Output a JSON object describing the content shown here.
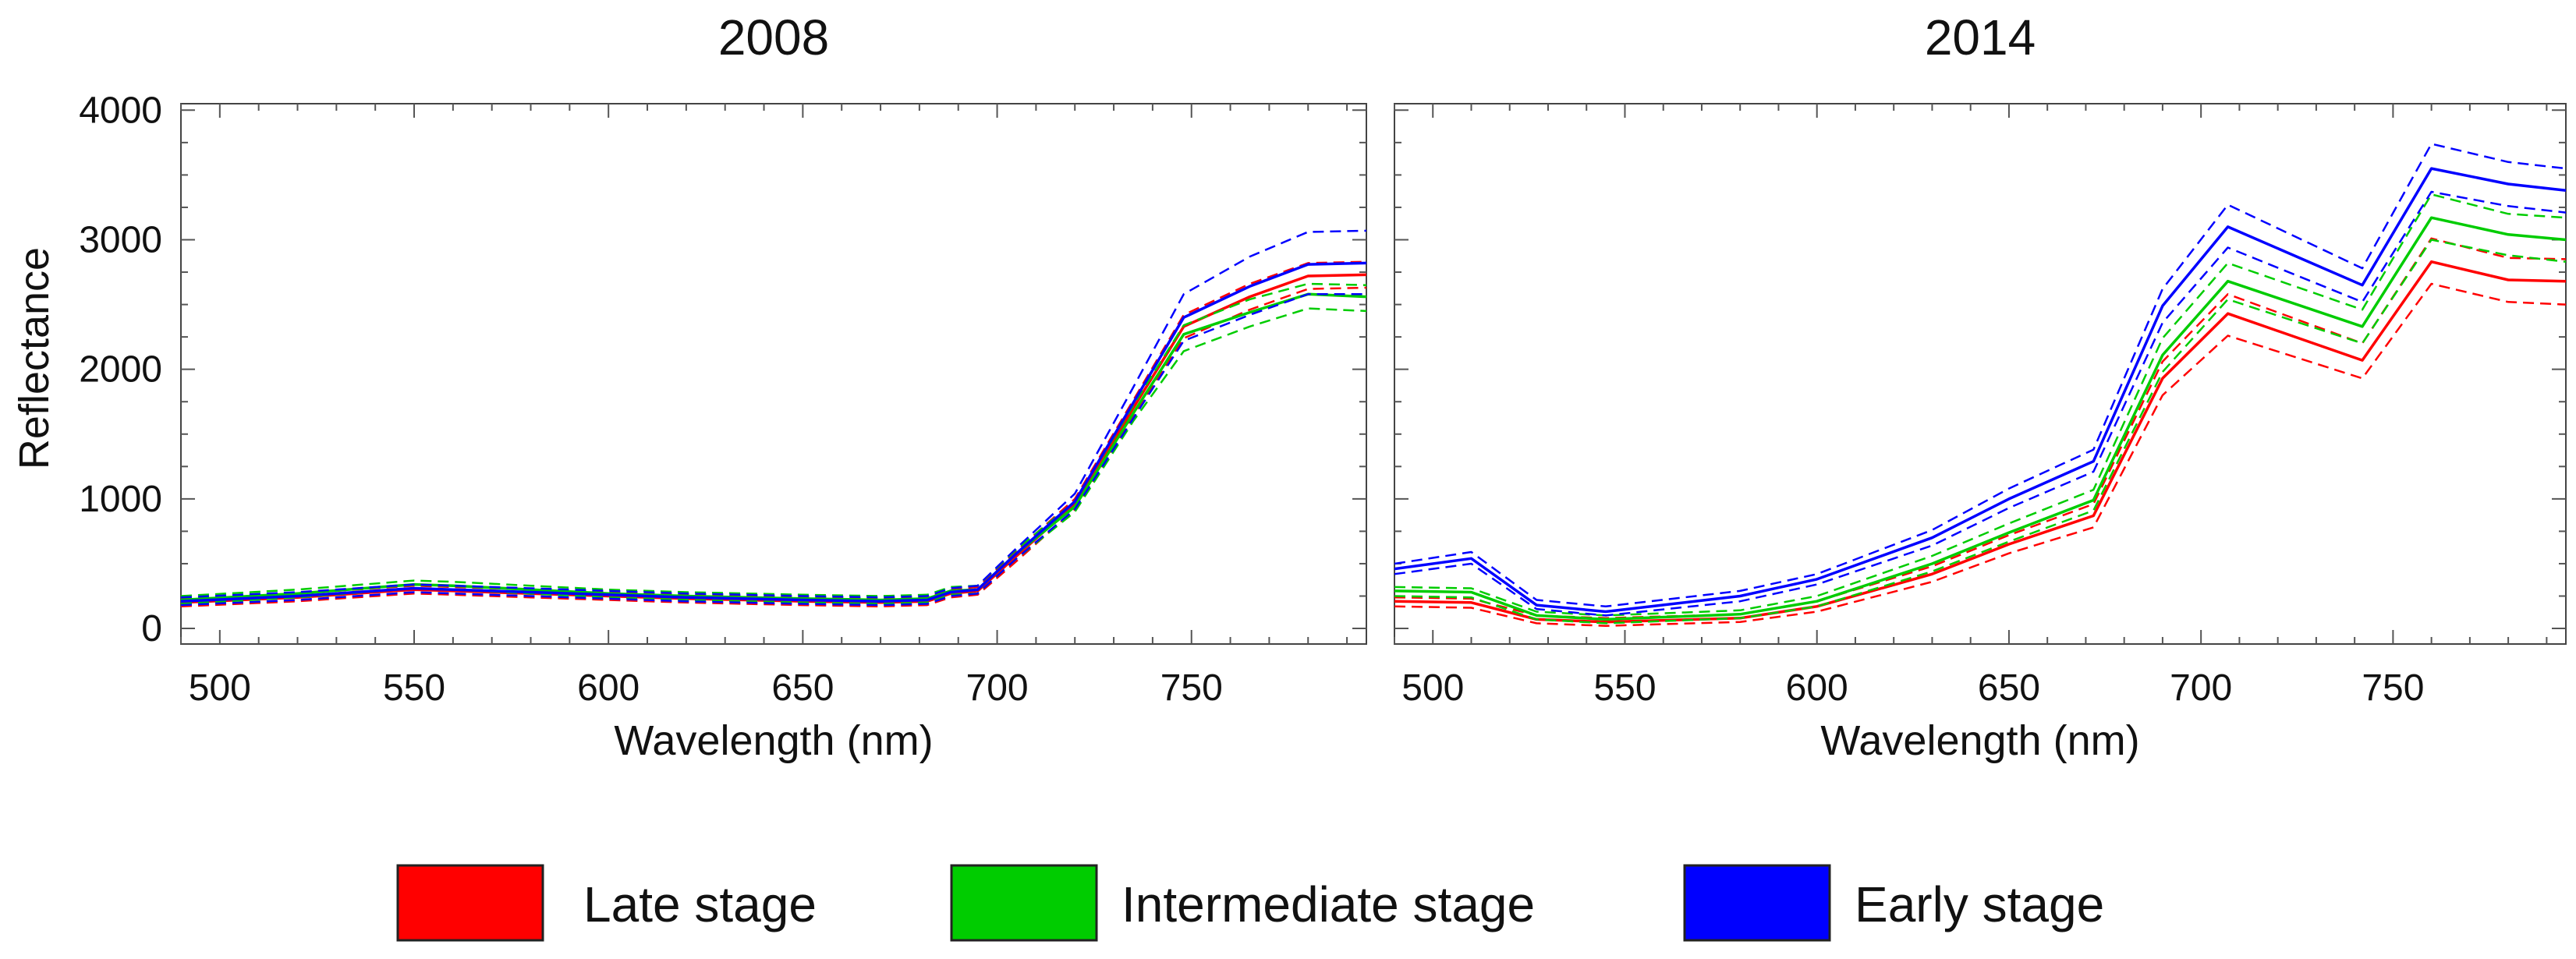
{
  "legend": {
    "items": [
      {
        "label": "Late stage",
        "color": "#ff0000"
      },
      {
        "label": "Intermediate stage",
        "color": "#00cc00"
      },
      {
        "label": "Early stage",
        "color": "#0000ff"
      }
    ]
  },
  "chart_data": [
    {
      "type": "line",
      "title": "2008",
      "xlabel": "Wavelength (nm)",
      "ylabel": "Reflectance",
      "xlim": [
        490,
        795
      ],
      "ylim": [
        -120,
        4050
      ],
      "xticks": [
        500,
        550,
        600,
        650,
        700,
        750
      ],
      "yticks": [
        0,
        1000,
        2000,
        3000,
        4000
      ],
      "x": [
        490,
        520,
        550,
        560,
        580,
        600,
        620,
        650,
        670,
        682,
        688,
        695,
        705,
        720,
        735,
        748,
        765,
        780,
        795
      ],
      "series": [
        {
          "name": "Late stage",
          "color": "#ff0000",
          "style": "solid",
          "values": [
            200,
            240,
            300,
            290,
            270,
            250,
            230,
            210,
            200,
            210,
            270,
            290,
            560,
            960,
            1700,
            2330,
            2560,
            2720,
            2730
          ]
        },
        {
          "name": "Late stage upper",
          "color": "#ff0000",
          "style": "dashed",
          "values": [
            230,
            270,
            330,
            320,
            300,
            280,
            260,
            240,
            230,
            240,
            300,
            320,
            600,
            1000,
            1760,
            2420,
            2660,
            2820,
            2830
          ]
        },
        {
          "name": "Late stage lower",
          "color": "#ff0000",
          "style": "dashed",
          "values": [
            170,
            210,
            270,
            260,
            240,
            220,
            200,
            180,
            170,
            180,
            240,
            260,
            520,
            920,
            1640,
            2240,
            2460,
            2620,
            2630
          ]
        },
        {
          "name": "Intermediate stage",
          "color": "#00cc00",
          "style": "solid",
          "values": [
            220,
            270,
            340,
            330,
            300,
            270,
            250,
            230,
            220,
            230,
            290,
            300,
            580,
            940,
            1660,
            2270,
            2440,
            2580,
            2560
          ]
        },
        {
          "name": "Intermediate stage upper",
          "color": "#00cc00",
          "style": "dashed",
          "values": [
            250,
            300,
            370,
            360,
            330,
            300,
            280,
            260,
            250,
            260,
            320,
            330,
            610,
            980,
            1720,
            2340,
            2540,
            2660,
            2650
          ]
        },
        {
          "name": "Intermediate stage lower",
          "color": "#00cc00",
          "style": "dashed",
          "values": [
            190,
            240,
            310,
            300,
            270,
            240,
            220,
            200,
            190,
            200,
            260,
            270,
            540,
            900,
            1600,
            2140,
            2330,
            2470,
            2450
          ]
        },
        {
          "name": "Early stage",
          "color": "#0000ff",
          "style": "solid",
          "values": [
            210,
            250,
            310,
            300,
            280,
            260,
            240,
            220,
            210,
            220,
            280,
            300,
            580,
            980,
            1740,
            2400,
            2640,
            2810,
            2820
          ]
        },
        {
          "name": "Early stage upper",
          "color": "#0000ff",
          "style": "dashed",
          "values": [
            240,
            280,
            340,
            330,
            310,
            290,
            270,
            250,
            240,
            250,
            310,
            330,
            620,
            1040,
            1860,
            2580,
            2870,
            3060,
            3070
          ]
        },
        {
          "name": "Early stage lower",
          "color": "#0000ff",
          "style": "dashed",
          "values": [
            180,
            220,
            280,
            270,
            250,
            230,
            210,
            190,
            180,
            190,
            250,
            270,
            540,
            920,
            1620,
            2220,
            2420,
            2580,
            2580
          ]
        }
      ]
    },
    {
      "type": "line",
      "title": "2014",
      "xlabel": "Wavelength (nm)",
      "ylabel": "",
      "xlim": [
        490,
        795
      ],
      "ylim": [
        -120,
        4050
      ],
      "xticks": [
        500,
        550,
        600,
        650,
        700,
        750
      ],
      "yticks": [],
      "x": [
        490,
        510,
        527,
        545,
        580,
        600,
        630,
        650,
        672,
        690,
        707,
        742,
        760,
        780,
        795
      ],
      "series": [
        {
          "name": "Late stage",
          "color": "#ff0000",
          "style": "solid",
          "values": [
            210,
            200,
            70,
            50,
            80,
            170,
            420,
            650,
            870,
            1930,
            2430,
            2070,
            2830,
            2690,
            2680
          ]
        },
        {
          "name": "Late stage upper",
          "color": "#ff0000",
          "style": "dashed",
          "values": [
            240,
            230,
            100,
            80,
            110,
            210,
            480,
            720,
            960,
            2060,
            2580,
            2200,
            3010,
            2860,
            2850
          ]
        },
        {
          "name": "Late stage lower",
          "color": "#ff0000",
          "style": "dashed",
          "values": [
            170,
            160,
            40,
            20,
            50,
            130,
            360,
            580,
            780,
            1800,
            2260,
            1930,
            2660,
            2520,
            2500
          ]
        },
        {
          "name": "Intermediate stage",
          "color": "#00cc00",
          "style": "solid",
          "values": [
            290,
            280,
            100,
            70,
            110,
            210,
            500,
            740,
            990,
            2110,
            2680,
            2330,
            3170,
            3040,
            3000
          ]
        },
        {
          "name": "Intermediate stage upper",
          "color": "#00cc00",
          "style": "dashed",
          "values": [
            320,
            310,
            130,
            100,
            140,
            250,
            560,
            810,
            1070,
            2240,
            2820,
            2460,
            3350,
            3200,
            3170
          ]
        },
        {
          "name": "Intermediate stage lower",
          "color": "#00cc00",
          "style": "dashed",
          "values": [
            250,
            240,
            70,
            40,
            80,
            170,
            440,
            670,
            910,
            1980,
            2540,
            2200,
            3000,
            2880,
            2830
          ]
        },
        {
          "name": "Early stage",
          "color": "#0000ff",
          "style": "solid",
          "values": [
            460,
            540,
            180,
            130,
            250,
            380,
            700,
            1000,
            1290,
            2490,
            3100,
            2650,
            3550,
            3430,
            3380
          ]
        },
        {
          "name": "Early stage upper",
          "color": "#0000ff",
          "style": "dashed",
          "values": [
            500,
            590,
            220,
            170,
            290,
            420,
            760,
            1080,
            1380,
            2620,
            3270,
            2780,
            3740,
            3600,
            3550
          ]
        },
        {
          "name": "Early stage lower",
          "color": "#0000ff",
          "style": "dashed",
          "values": [
            420,
            500,
            150,
            100,
            210,
            340,
            640,
            930,
            1210,
            2360,
            2940,
            2520,
            3370,
            3260,
            3210
          ]
        }
      ]
    }
  ]
}
